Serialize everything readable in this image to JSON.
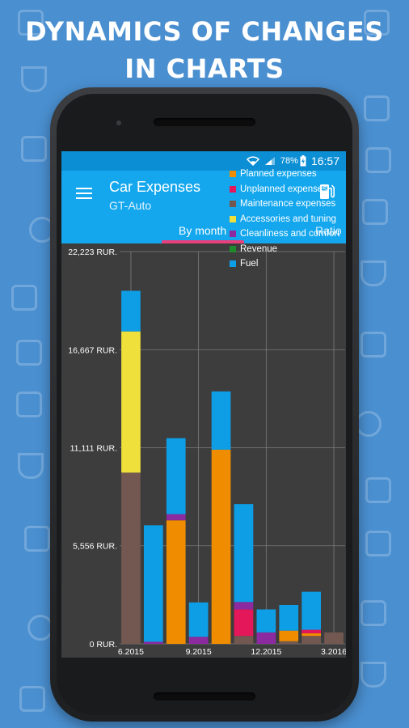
{
  "headline": {
    "line1": "DYNAMICS OF CHANGES",
    "line2": "IN CHARTS"
  },
  "status_bar": {
    "battery": "78%",
    "time": "16:57",
    "icons": [
      "wifi-icon",
      "signal-icon",
      "battery-charging-icon"
    ]
  },
  "app_bar": {
    "title": "Car Expenses",
    "subtitle": "GT-Auto",
    "menu_icon": "hamburger-menu-icon",
    "action_icon": "fuel-pump-icon"
  },
  "tabs": [
    {
      "label": "By month",
      "active": true
    },
    {
      "label": "Ratio",
      "active": false
    }
  ],
  "colors": {
    "background": "#4a8fd0",
    "status_bar": "#0b8ed4",
    "app_bar": "#14a7ee",
    "tab_indicator": "#e8407a",
    "chart_background": "#3d3d3d"
  },
  "chart_data": {
    "type": "bar",
    "stacked": true,
    "title": "",
    "xlabel": "",
    "ylabel": "",
    "ylim": [
      0,
      22223
    ],
    "yticks": [
      0,
      5556,
      11111,
      16667,
      22223
    ],
    "ytick_labels": [
      "0 RUR.",
      "5,556 RUR.",
      "11,111 RUR.",
      "16,667 RUR.",
      "22,223 RUR."
    ],
    "categories": [
      "6.2015",
      "7.2015",
      "8.2015",
      "9.2015",
      "10.2015",
      "11.2015",
      "12.2015",
      "1.2016",
      "2.2016",
      "3.2016"
    ],
    "xtick_labels": [
      "6.2015",
      "9.2015",
      "12.2015",
      "3.2016"
    ],
    "legend_position": "top-right",
    "grid": true,
    "series": [
      {
        "name": "Planned expenses",
        "color": "#ef8c00",
        "values": [
          0,
          0,
          7000,
          0,
          11000,
          0,
          0,
          600,
          150,
          0
        ]
      },
      {
        "name": "Unplanned expenses",
        "color": "#e3175a",
        "values": [
          0,
          0,
          0,
          0,
          0,
          1500,
          0,
          0,
          200,
          0
        ]
      },
      {
        "name": "Maintenance expenses",
        "color": "#725850",
        "values": [
          9700,
          0,
          0,
          0,
          0,
          450,
          0,
          150,
          450,
          650
        ]
      },
      {
        "name": "Accessories and tuning",
        "color": "#f0e03c",
        "values": [
          8000,
          0,
          0,
          0,
          0,
          0,
          0,
          0,
          0,
          0
        ]
      },
      {
        "name": "Cleanliness and comfort",
        "color": "#8c2aa0",
        "values": [
          0,
          120,
          350,
          400,
          0,
          420,
          650,
          0,
          0,
          0
        ]
      },
      {
        "name": "Revenue",
        "color": "#1e8c2d",
        "values": [
          0,
          0,
          0,
          0,
          0,
          0,
          0,
          0,
          0,
          0
        ]
      },
      {
        "name": "Fuel",
        "color": "#0e9ee6",
        "values": [
          2300,
          6600,
          4300,
          1950,
          3300,
          5550,
          1300,
          1450,
          2150,
          0
        ]
      }
    ]
  }
}
